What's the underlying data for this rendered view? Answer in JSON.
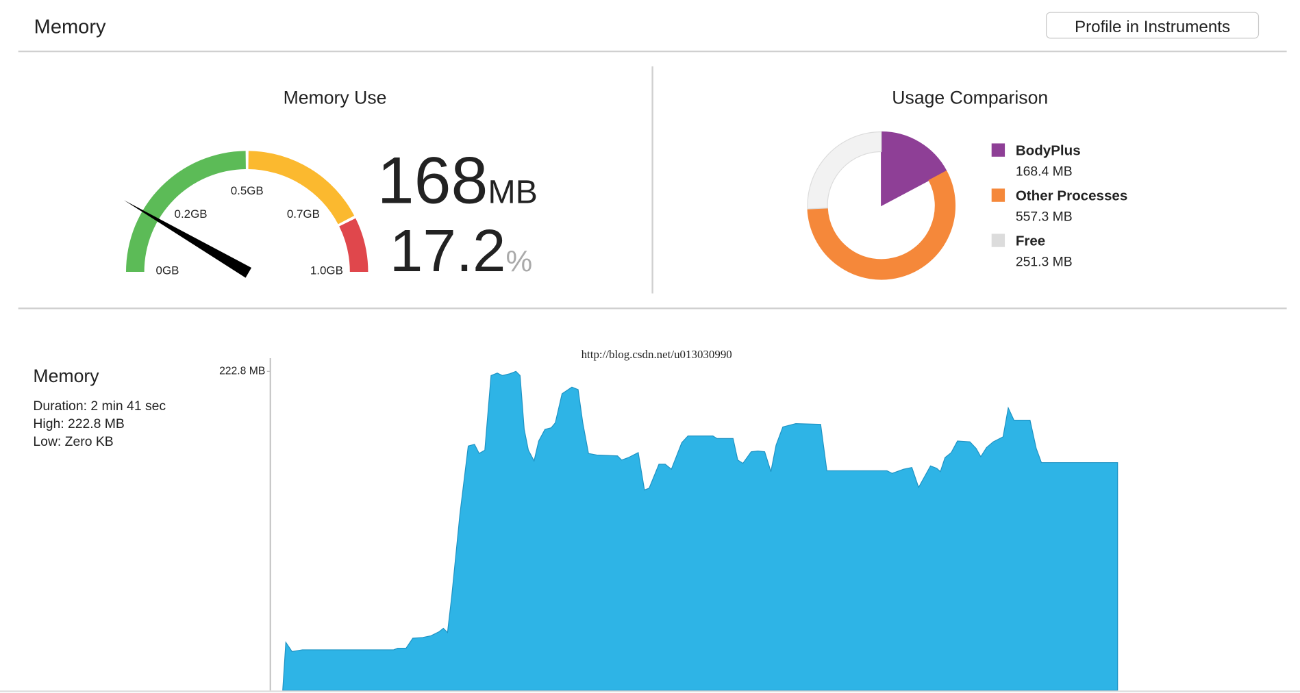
{
  "header": {
    "title": "Memory",
    "button": "Profile in Instruments"
  },
  "memory_use": {
    "title": "Memory Use",
    "value": 168,
    "unit": "MB",
    "percent": 17.2,
    "percent_unit": "%",
    "lim": [
      0,
      1000
    ],
    "ticks": [
      {
        "value": 0,
        "label": "0GB"
      },
      {
        "value": 250,
        "label": "0.2GB"
      },
      {
        "value": 500,
        "label": "0.5GB"
      },
      {
        "value": 750,
        "label": "0.7GB"
      },
      {
        "value": 1000,
        "label": "1.0GB"
      }
    ],
    "zones": [
      {
        "to": 500,
        "color": "#5cbb57"
      },
      {
        "to": 850,
        "color": "#fbb92f"
      },
      {
        "to": 1000,
        "color": "#e0474c"
      }
    ],
    "needle_color": "#000000"
  },
  "usage_comparison": {
    "title": "Usage Comparison",
    "type": "pie",
    "series": [
      {
        "name": "BodyPlus",
        "value": 168.4,
        "value_label": "168.4 MB",
        "color": "#8e3f96"
      },
      {
        "name": "Other Processes",
        "value": 557.3,
        "value_label": "557.3 MB",
        "color": "#f5883a"
      },
      {
        "name": "Free",
        "value": 251.3,
        "value_label": "251.3 MB",
        "color": "#f2f2f2"
      }
    ]
  },
  "chart_data": {
    "type": "area",
    "title": "Memory",
    "details": [
      "Duration: 2 min 41 sec",
      "High: 222.8 MB",
      "Low: Zero KB"
    ],
    "watermark": "http://blog.csdn.net/u013030990",
    "xlim": [
      0,
      161.1
    ],
    "ylim": [
      0,
      222.8
    ],
    "yticks": [
      {
        "value": 222.8,
        "label": "222.8 MB"
      }
    ],
    "series": [
      {
        "name": "Memory",
        "color": "#2eb4e6",
        "x": [
          0,
          0.6,
          1.8,
          3.8,
          21.4,
          22.2,
          23.8,
          25.1,
          27.0,
          28.6,
          30.2,
          31.0,
          31.8,
          32.6,
          34.2,
          35.8,
          37.0,
          37.9,
          39.0,
          40.2,
          41.4,
          42.4,
          43.8,
          45.0,
          45.8,
          46.6,
          47.4,
          48.5,
          49.4,
          50.6,
          51.8,
          52.6,
          53.9,
          55.8,
          57.0,
          57.9,
          59.0,
          60.6,
          64.6,
          65.4,
          66.7,
          68.6,
          69.8,
          70.7,
          72.6,
          73.8,
          75.0,
          77.0,
          78.2,
          83.0,
          83.8,
          86.9,
          87.8,
          88.8,
          90.4,
          91.7,
          93.0,
          94.2,
          95.2,
          96.5,
          99.0,
          103.8,
          105.0,
          116.6,
          117.6,
          119.8,
          121.4,
          122.7,
          125.0,
          126.2,
          126.9,
          127.8,
          129.0,
          130.2,
          132.6,
          133.8,
          134.7,
          135.8,
          137.1,
          139.0,
          140.0,
          141.1,
          144.2,
          145.4,
          146.4,
          161.1
        ],
        "values": [
          0,
          33.6,
          27.2,
          28.4,
          28.4,
          29.5,
          29.5,
          36.5,
          37.0,
          38.2,
          41.1,
          43.4,
          40.5,
          65.4,
          123.3,
          170.7,
          171.9,
          165.5,
          167.8,
          219.9,
          221.6,
          219.9,
          221.1,
          222.8,
          219.9,
          182.3,
          167.8,
          160.3,
          174.2,
          182.3,
          183.4,
          186.9,
          207.2,
          211.8,
          210.1,
          186.9,
          165.5,
          164.4,
          163.8,
          160.9,
          162.6,
          166.1,
          140.0,
          141.2,
          158.0,
          158.0,
          154.5,
          173.0,
          177.7,
          177.7,
          175.9,
          175.9,
          160.9,
          158.6,
          166.7,
          167.2,
          166.7,
          152.8,
          171.3,
          184.0,
          186.3,
          185.8,
          153.4,
          153.4,
          151.6,
          154.5,
          155.7,
          141.8,
          156.8,
          155.1,
          152.8,
          162.6,
          166.1,
          174.2,
          173.6,
          169.0,
          163.2,
          169.6,
          173.6,
          177.1,
          197.3,
          188.7,
          188.7,
          169.0,
          159.1,
          159.1
        ]
      }
    ]
  }
}
